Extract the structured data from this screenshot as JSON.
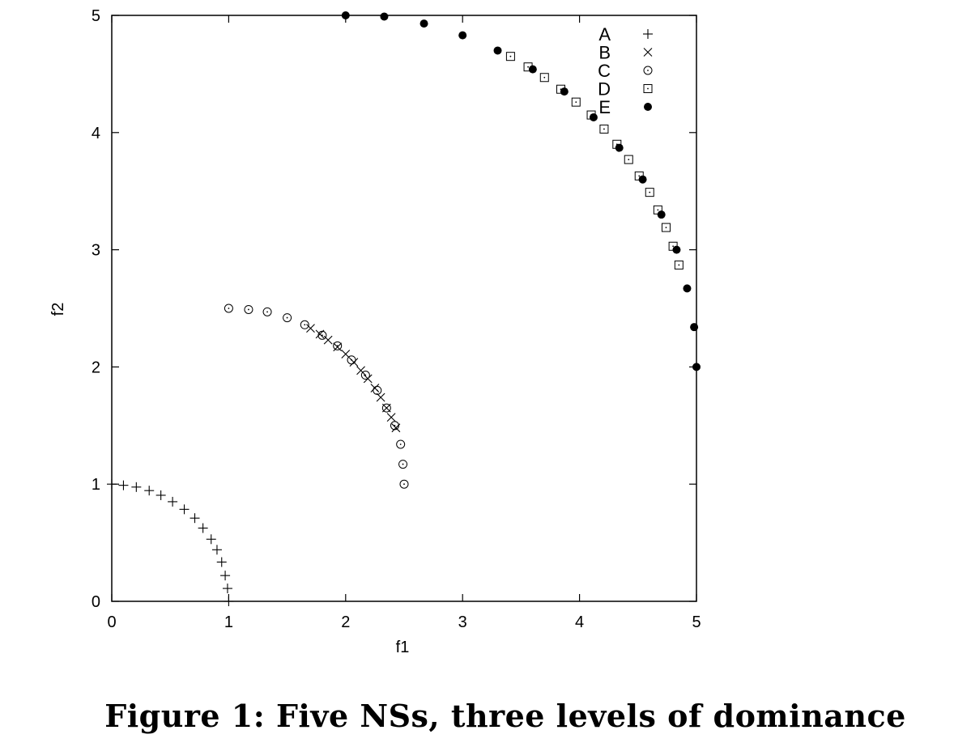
{
  "chart_data": {
    "type": "scatter",
    "xlabel": "f1",
    "ylabel": "f2",
    "xlim": [
      0,
      5
    ],
    "ylim": [
      0,
      5
    ],
    "xticks": [
      "0",
      "1",
      "2",
      "3",
      "4",
      "5"
    ],
    "yticks": [
      "0",
      "1",
      "2",
      "3",
      "4",
      "5"
    ],
    "legend_position": "top-right",
    "series": [
      {
        "name": "A",
        "marker": "plus",
        "points": [
          [
            0.0,
            1.0
          ],
          [
            0.1,
            0.99
          ],
          [
            0.21,
            0.975
          ],
          [
            0.32,
            0.945
          ],
          [
            0.42,
            0.905
          ],
          [
            0.52,
            0.85
          ],
          [
            0.62,
            0.785
          ],
          [
            0.71,
            0.71
          ],
          [
            0.78,
            0.625
          ],
          [
            0.85,
            0.53
          ],
          [
            0.9,
            0.44
          ],
          [
            0.94,
            0.335
          ],
          [
            0.97,
            0.22
          ],
          [
            0.99,
            0.11
          ],
          [
            1.0,
            0.0
          ]
        ]
      },
      {
        "name": "B",
        "marker": "cross",
        "points": [
          [
            1.7,
            2.33
          ],
          [
            1.78,
            2.28
          ],
          [
            1.85,
            2.23
          ],
          [
            1.93,
            2.17
          ],
          [
            2.0,
            2.11
          ],
          [
            2.07,
            2.04
          ],
          [
            2.13,
            1.97
          ],
          [
            2.19,
            1.9
          ],
          [
            2.25,
            1.82
          ],
          [
            2.3,
            1.74
          ],
          [
            2.35,
            1.65
          ],
          [
            2.39,
            1.57
          ],
          [
            2.43,
            1.48
          ]
        ]
      },
      {
        "name": "C",
        "marker": "circle-dot",
        "points": [
          [
            1.0,
            2.5
          ],
          [
            1.17,
            2.49
          ],
          [
            1.33,
            2.47
          ],
          [
            1.5,
            2.42
          ],
          [
            1.65,
            2.36
          ],
          [
            1.8,
            2.27
          ],
          [
            1.93,
            2.18
          ],
          [
            2.05,
            2.06
          ],
          [
            2.17,
            1.93
          ],
          [
            2.27,
            1.8
          ],
          [
            2.35,
            1.65
          ],
          [
            2.42,
            1.5
          ],
          [
            2.47,
            1.34
          ],
          [
            2.49,
            1.17
          ],
          [
            2.5,
            1.0
          ]
        ]
      },
      {
        "name": "D",
        "marker": "square-dot",
        "points": [
          [
            3.41,
            4.65
          ],
          [
            3.56,
            4.56
          ],
          [
            3.7,
            4.47
          ],
          [
            3.84,
            4.37
          ],
          [
            3.97,
            4.26
          ],
          [
            4.1,
            4.15
          ],
          [
            4.21,
            4.03
          ],
          [
            4.32,
            3.9
          ],
          [
            4.42,
            3.77
          ],
          [
            4.51,
            3.63
          ],
          [
            4.6,
            3.49
          ],
          [
            4.67,
            3.34
          ],
          [
            4.74,
            3.19
          ],
          [
            4.8,
            3.03
          ],
          [
            4.85,
            2.87
          ]
        ]
      },
      {
        "name": "E",
        "marker": "filled-circle",
        "points": [
          [
            2.0,
            5.0
          ],
          [
            2.33,
            4.99
          ],
          [
            2.67,
            4.93
          ],
          [
            3.0,
            4.83
          ],
          [
            3.3,
            4.7
          ],
          [
            3.6,
            4.54
          ],
          [
            3.87,
            4.35
          ],
          [
            4.12,
            4.13
          ],
          [
            4.34,
            3.87
          ],
          [
            4.54,
            3.6
          ],
          [
            4.7,
            3.3
          ],
          [
            4.83,
            3.0
          ],
          [
            4.92,
            2.67
          ],
          [
            4.98,
            2.34
          ],
          [
            5.0,
            2.0
          ]
        ]
      }
    ],
    "caption": "Figure 1: Five NSs, three levels of dominance"
  }
}
